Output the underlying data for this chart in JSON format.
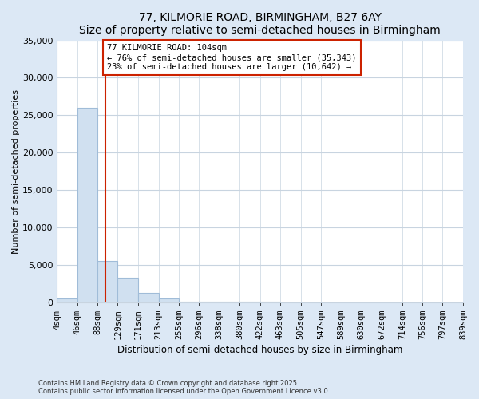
{
  "title": "77, KILMORIE ROAD, BIRMINGHAM, B27 6AY",
  "subtitle": "Size of property relative to semi-detached houses in Birmingham",
  "xlabel": "Distribution of semi-detached houses by size in Birmingham",
  "ylabel": "Number of semi-detached properties",
  "footer_line1": "Contains HM Land Registry data © Crown copyright and database right 2025.",
  "footer_line2": "Contains public sector information licensed under the Open Government Licence v3.0.",
  "bin_edges": [
    4,
    46,
    88,
    129,
    171,
    213,
    255,
    296,
    338,
    380,
    422,
    463,
    505,
    547,
    589,
    630,
    672,
    714,
    756,
    797,
    839
  ],
  "bin_heights": [
    500,
    26000,
    5500,
    3300,
    1200,
    500,
    100,
    30,
    10,
    5,
    3,
    2,
    1,
    0,
    0,
    0,
    0,
    0,
    0,
    0
  ],
  "property_size": 104,
  "bar_facecolor": "#d0e0f0",
  "bar_edgecolor": "#a0bcd8",
  "redline_color": "#cc2200",
  "annotation_text": "77 KILMORIE ROAD: 104sqm\n← 76% of semi-detached houses are smaller (35,343)\n23% of semi-detached houses are larger (10,642) →",
  "annotation_box_color": "#ffffff",
  "annotation_box_edgecolor": "#cc2200",
  "ylim": [
    0,
    35000
  ],
  "yticks": [
    0,
    5000,
    10000,
    15000,
    20000,
    25000,
    30000,
    35000
  ],
  "figure_background": "#dce8f5",
  "plot_background": "#ffffff",
  "tick_labels": [
    "4sqm",
    "46sqm",
    "88sqm",
    "129sqm",
    "171sqm",
    "213sqm",
    "255sqm",
    "296sqm",
    "338sqm",
    "380sqm",
    "422sqm",
    "463sqm",
    "505sqm",
    "547sqm",
    "589sqm",
    "630sqm",
    "672sqm",
    "714sqm",
    "756sqm",
    "797sqm",
    "839sqm"
  ]
}
